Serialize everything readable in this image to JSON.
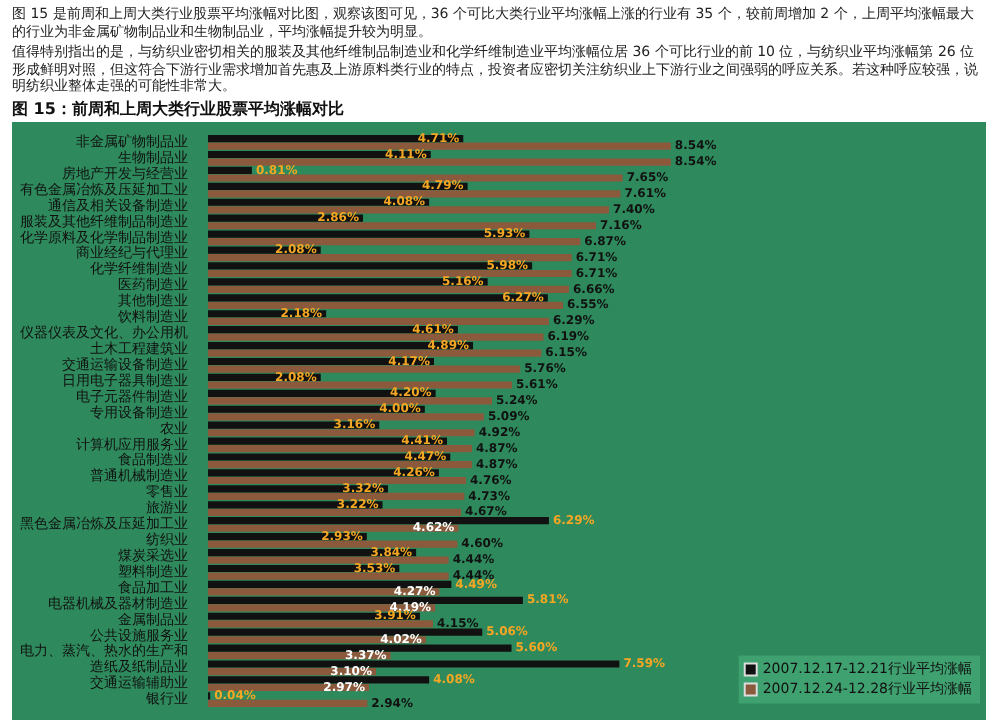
{
  "chart_data": {
    "type": "bar",
    "orientation": "horizontal",
    "title": "图 15：前周和上周大类行业股票平均涨幅对比",
    "annotations": [
      "图 15 是前周和上周大类行业股票平均涨幅对比图，观察该图可见，36 个可比大类行业平均涨幅上涨的行业有 35 个，较前周增加 2 个，上周平均涨幅最大的行业为非金属矿物制品业和生物制品业，平均涨幅提升较为明显。",
      "值得特别指出的是，与纺织业密切相关的服装及其他纤维制品制造业和化学纤维制造业平均涨幅位居 36 个可比行业的前 10 位，与纺织业平均涨幅第 26 位形成鲜明对照，但这符合下游行业需求增加首先惠及上游原料类行业的特点，投资者应密切关注纺织业上下游行业之间强弱的呼应关系。若这种呼应较强，说明纺织业整体走强的可能性非常大。"
    ],
    "categories": [
      "非金属矿物制品业",
      "生物制品业",
      "房地产开发与经营业",
      "有色金属冶炼及压延加工业",
      "通信及相关设备制造业",
      "服装及其他纤维制品制造业",
      "化学原料及化学制品制造业",
      "商业经纪与代理业",
      "化学纤维制造业",
      "医药制造业",
      "其他制造业",
      "饮料制造业",
      "仪器仪表及文化、办公用机",
      "土木工程建筑业",
      "交通运输设备制造业",
      "日用电子器具制造业",
      "电子元器件制造业",
      "专用设备制造业",
      "农业",
      "计算机应用服务业",
      "食品制造业",
      "普通机械制造业",
      "零售业",
      "旅游业",
      "黑色金属冶炼及压延加工业",
      "纺织业",
      "煤炭采选业",
      "塑料制造业",
      "食品加工业",
      "电器机械及器材制造业",
      "金属制品业",
      "公共设施服务业",
      "电力、蒸汽、热水的生产和",
      "造纸及纸制品业",
      "交通运输辅助业",
      "银行业"
    ],
    "series": [
      {
        "name": "2007.12.17-12.21行业平均涨幅",
        "color": "#111111",
        "values": [
          4.71,
          4.11,
          0.81,
          4.79,
          4.08,
          2.86,
          5.93,
          2.08,
          5.98,
          5.16,
          6.27,
          2.18,
          4.61,
          4.89,
          4.17,
          2.08,
          4.2,
          4.0,
          3.16,
          4.41,
          4.47,
          4.26,
          3.32,
          3.22,
          6.29,
          2.93,
          3.84,
          3.53,
          4.49,
          5.81,
          3.91,
          5.06,
          5.6,
          7.59,
          4.08,
          0.04
        ],
        "value_labels": [
          "4.71%",
          "4.11%",
          "0.81%",
          "4.79%",
          "4.08%",
          "2.86%",
          "5.93%",
          "2.08%",
          "5.98%",
          "5.16%",
          "6.27%",
          "2.18%",
          "4.61%",
          "4.89%",
          "4.17%",
          "2.08%",
          "4.20%",
          "4.00%",
          "3.16%",
          "4.41%",
          "4.47%",
          "4.26%",
          "3.32%",
          "3.22%",
          "6.29%",
          "2.93%",
          "3.84%",
          "3.53%",
          "4.49%",
          "5.81%",
          "3.91%",
          "5.06%",
          "5.60%",
          "7.59%",
          "4.08%",
          "0.04%"
        ]
      },
      {
        "name": "2007.12.24-12.28行业平均涨幅",
        "color": "#8b5a3c",
        "values": [
          8.54,
          8.54,
          7.65,
          7.61,
          7.4,
          7.16,
          6.87,
          6.71,
          6.71,
          6.66,
          6.55,
          6.29,
          6.19,
          6.15,
          5.76,
          5.61,
          5.24,
          5.09,
          4.92,
          4.87,
          4.87,
          4.76,
          4.73,
          4.67,
          4.62,
          4.6,
          4.44,
          4.44,
          4.27,
          4.19,
          4.15,
          4.02,
          3.37,
          3.1,
          2.97,
          2.94
        ],
        "value_labels": [
          "8.54%",
          "8.54%",
          "7.65%",
          "7.61%",
          "7.40%",
          "7.16%",
          "6.87%",
          "6.71%",
          "6.71%",
          "6.66%",
          "6.55%",
          "6.29%",
          "6.19%",
          "6.15%",
          "5.76%",
          "5.61%",
          "5.24%",
          "5.09%",
          "4.92%",
          "4.87%",
          "4.87%",
          "4.76%",
          "4.73%",
          "4.67%",
          "4.62%",
          "4.60%",
          "4.44%",
          "4.44%",
          "4.27%",
          "4.19%",
          "4.15%",
          "4.02%",
          "3.37%",
          "3.10%",
          "2.97%",
          "2.94%"
        ]
      }
    ],
    "legend": "bottom right"
  }
}
